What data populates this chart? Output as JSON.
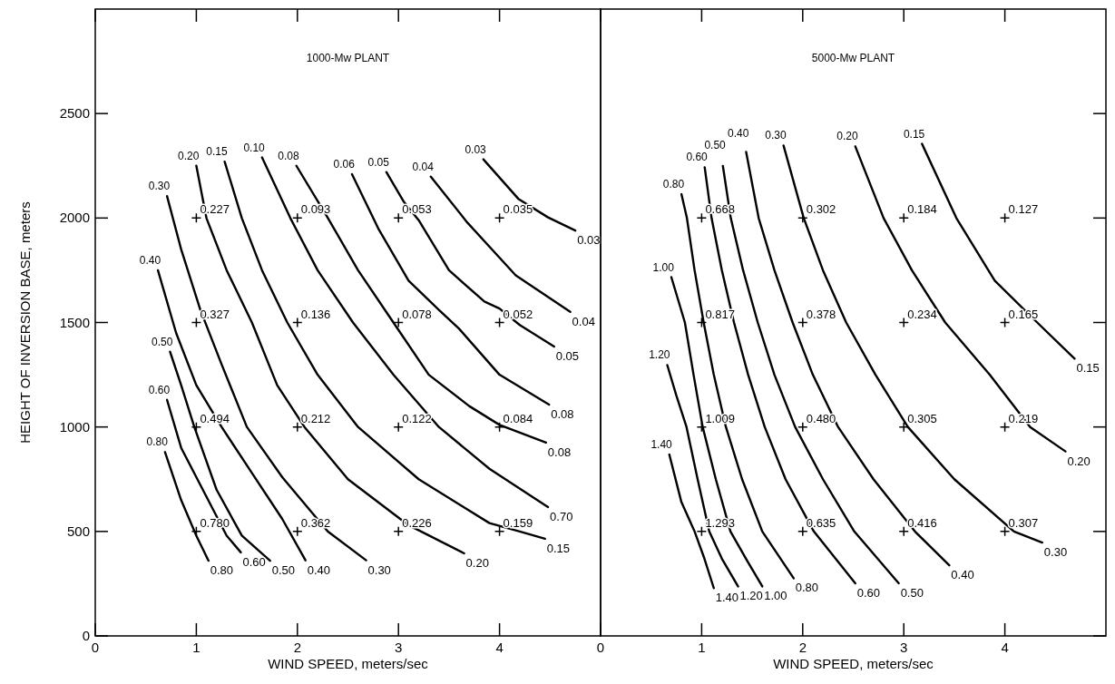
{
  "chart_data": [
    {
      "type": "line",
      "title": "1000-Mw PLANT",
      "xlabel": "WIND SPEED, meters/sec",
      "ylabel": "HEIGHT OF INVERSION BASE, meters",
      "xlim": [
        0,
        5
      ],
      "xticks": [
        0,
        1,
        2,
        3,
        4
      ],
      "ylim": [
        0,
        3000
      ],
      "yticks": [
        0,
        500,
        1000,
        1500,
        2000,
        2500
      ],
      "series": [
        {
          "name": "0.80",
          "color": "#000000",
          "x": [
            0.69,
            0.85,
            1.0,
            1.12
          ],
          "values": [
            880,
            650,
            480,
            360
          ]
        },
        {
          "name": "0.60",
          "color": "#000000",
          "x": [
            0.71,
            0.85,
            1.0,
            1.3,
            1.44
          ],
          "values": [
            1130,
            900,
            760,
            480,
            400
          ]
        },
        {
          "name": "0.50",
          "color": "#000000",
          "x": [
            0.74,
            0.85,
            0.98,
            1.2,
            1.45,
            1.73
          ],
          "values": [
            1360,
            1200,
            1000,
            700,
            480,
            360
          ]
        },
        {
          "name": "0.40",
          "color": "#000000",
          "x": [
            0.62,
            0.8,
            1.0,
            1.25,
            1.55,
            1.85,
            2.08
          ],
          "values": [
            1750,
            1450,
            1200,
            1000,
            780,
            560,
            362
          ]
        },
        {
          "name": "0.30",
          "color": "#000000",
          "x": [
            0.71,
            0.85,
            1.04,
            1.25,
            1.5,
            1.85,
            2.3,
            2.68
          ],
          "values": [
            2105,
            1850,
            1560,
            1300,
            1000,
            760,
            500,
            362
          ]
        },
        {
          "name": "0.20",
          "color": "#000000",
          "x": [
            1.0,
            1.1,
            1.3,
            1.55,
            1.8,
            2.07,
            2.5,
            3.1,
            3.65
          ],
          "values": [
            2250,
            2000,
            1750,
            1500,
            1200,
            1000,
            750,
            530,
            395
          ]
        },
        {
          "name": "0.15",
          "color": "#000000",
          "x": [
            1.28,
            1.45,
            1.65,
            1.9,
            2.2,
            2.6,
            3.2,
            3.9,
            4.2,
            4.45
          ],
          "values": [
            2270,
            2000,
            1750,
            1500,
            1250,
            1000,
            750,
            540,
            500,
            465
          ]
        },
        {
          "name": "0.10",
          "color": "#000000",
          "x": [
            1.65,
            1.93,
            2.2,
            2.55,
            2.95,
            3.4,
            3.9,
            4.48
          ],
          "values": [
            2290,
            2000,
            1750,
            1500,
            1250,
            1000,
            800,
            617
          ]
        },
        {
          "name": "0.08",
          "color": "#000000",
          "x": [
            1.99,
            2.29,
            2.6,
            2.95,
            3.3,
            3.7,
            4.0,
            4.46
          ],
          "values": [
            2250,
            2010,
            1750,
            1500,
            1250,
            1100,
            1010,
            925
          ]
        },
        {
          "name": "0.06",
          "color": "#000000",
          "x": [
            2.54,
            2.8,
            3.1,
            3.4,
            3.6,
            4.0,
            4.49
          ],
          "values": [
            2210,
            1950,
            1700,
            1560,
            1470,
            1250,
            1107
          ]
        },
        {
          "name": "0.05",
          "color": "#000000",
          "x": [
            2.88,
            3.05,
            3.2,
            3.5,
            3.85,
            4.0,
            4.2,
            4.54
          ],
          "values": [
            2220,
            2080,
            1990,
            1750,
            1600,
            1567,
            1488,
            1385
          ]
        },
        {
          "name": "0.04",
          "color": "#000000",
          "x": [
            3.32,
            3.68,
            4.16,
            4.7
          ],
          "values": [
            2198,
            1979,
            1726,
            1551
          ]
        },
        {
          "name": "0.03",
          "color": "#000000",
          "x": [
            3.84,
            4.19,
            4.48,
            4.75
          ],
          "values": [
            2281,
            2090,
            2003,
            1940
          ]
        },
        {
          "type": "scatter",
          "marker": "cross",
          "color": "#000000",
          "x": [
            1,
            2,
            3,
            4,
            1,
            2,
            3,
            4,
            1,
            2,
            3,
            4,
            1,
            2,
            3,
            4
          ],
          "values": [
            2000,
            2000,
            2000,
            2000,
            1500,
            1500,
            1500,
            1500,
            1000,
            1000,
            1000,
            1000,
            500,
            500,
            500,
            500
          ]
        }
      ],
      "annotations": [
        {
          "text": "0.227",
          "x": 1,
          "y": 2000
        },
        {
          "text": "0.093",
          "x": 2,
          "y": 2000
        },
        {
          "text": "0.053",
          "x": 3,
          "y": 2000
        },
        {
          "text": "0.035",
          "x": 4,
          "y": 2000
        },
        {
          "text": "0.327",
          "x": 1,
          "y": 1500
        },
        {
          "text": "0.136",
          "x": 2,
          "y": 1500
        },
        {
          "text": "0.078",
          "x": 3,
          "y": 1500
        },
        {
          "text": "0.052",
          "x": 4,
          "y": 1500
        },
        {
          "text": "0.494",
          "x": 1,
          "y": 1000
        },
        {
          "text": "0.212",
          "x": 2,
          "y": 1000
        },
        {
          "text": "0.122",
          "x": 3,
          "y": 1000
        },
        {
          "text": "0.084",
          "x": 4,
          "y": 1000
        },
        {
          "text": "0.780",
          "x": 1,
          "y": 500
        },
        {
          "text": "0.362",
          "x": 2,
          "y": 500
        },
        {
          "text": "0.226",
          "x": 3,
          "y": 500
        },
        {
          "text": "0.159",
          "x": 4,
          "y": 500
        },
        "0.80",
        "0.60",
        "0.50",
        "0.40",
        "0.30",
        "0.20",
        "0.15",
        "0.70",
        "0.08",
        "0.08",
        "0.05",
        "0.04",
        "0.03"
      ]
    },
    {
      "type": "line",
      "title": "5000-Mw PLANT",
      "xlabel": "WIND SPEED, meters/sec",
      "xlim": [
        0,
        5
      ],
      "xticks": [
        0,
        1,
        2,
        3,
        4
      ],
      "ylim": [
        0,
        3000
      ],
      "yticks": [
        0,
        500,
        1000,
        1500,
        2000,
        2500
      ],
      "tick_labels": "x",
      "series": [
        {
          "name": "1.40",
          "color": "#000000",
          "x": [
            0.68,
            0.8,
            0.93,
            1.02,
            1.12
          ],
          "values": [
            868,
            640,
            500,
            380,
            229
          ]
        },
        {
          "name": "1.20",
          "color": "#000000",
          "x": [
            0.66,
            0.75,
            0.85,
            0.96,
            1.075,
            1.2,
            1.36
          ],
          "values": [
            1296,
            1150,
            1000,
            750,
            500,
            370,
            237
          ]
        },
        {
          "name": "1.00",
          "color": "#000000",
          "x": [
            0.7,
            0.834,
            0.92,
            1.01,
            1.14,
            1.285,
            1.45,
            1.6
          ],
          "values": [
            1717,
            1500,
            1250,
            1000,
            750,
            500,
            360,
            237
          ]
        },
        {
          "name": "0.80",
          "color": "#000000",
          "x": [
            0.8,
            0.854,
            0.93,
            1.02,
            1.12,
            1.24,
            1.4,
            1.6,
            1.91
          ],
          "values": [
            2114,
            2000,
            1750,
            1500,
            1250,
            1000,
            750,
            500,
            276
          ]
        },
        {
          "name": "0.60",
          "color": "#000000",
          "x": [
            1.03,
            1.098,
            1.2,
            1.32,
            1.46,
            1.624,
            1.83,
            2.11,
            2.52
          ],
          "values": [
            2243,
            2000,
            1750,
            1500,
            1250,
            1000,
            750,
            500,
            252
          ]
        },
        {
          "name": "0.50",
          "color": "#000000",
          "x": [
            1.21,
            1.288,
            1.41,
            1.555,
            1.72,
            1.925,
            2.2,
            2.51,
            2.95
          ],
          "values": [
            2249,
            2000,
            1750,
            1500,
            1250,
            1000,
            750,
            500,
            252
          ]
        },
        {
          "name": "0.40",
          "color": "#000000",
          "x": [
            1.44,
            1.564,
            1.72,
            1.9,
            2.1,
            2.35,
            2.7,
            3.11,
            3.45
          ],
          "values": [
            2316,
            2000,
            1750,
            1500,
            1250,
            1000,
            750,
            500,
            338
          ]
        },
        {
          "name": "0.30",
          "color": "#000000",
          "x": [
            1.81,
            2.01,
            2.2,
            2.43,
            2.72,
            3.04,
            3.5,
            4.09,
            4.37
          ],
          "values": [
            2347,
            2000,
            1750,
            1500,
            1250,
            1000,
            750,
            500,
            447
          ]
        },
        {
          "name": "0.20",
          "color": "#000000",
          "x": [
            2.52,
            2.8,
            3.08,
            3.41,
            3.85,
            4.25,
            4.6
          ],
          "values": [
            2343,
            2000,
            1750,
            1500,
            1250,
            1000,
            883
          ]
        },
        {
          "name": "0.15",
          "color": "#000000",
          "x": [
            3.18,
            3.52,
            3.9,
            4.32,
            4.69
          ],
          "values": [
            2355,
            2000,
            1700,
            1500,
            1327
          ]
        },
        {
          "type": "scatter",
          "marker": "cross",
          "color": "#000000",
          "x": [
            1,
            2,
            3,
            4,
            1,
            2,
            3,
            4,
            1,
            2,
            3,
            4,
            1,
            2,
            3,
            4
          ],
          "values": [
            2000,
            2000,
            2000,
            2000,
            1500,
            1500,
            1500,
            1500,
            1000,
            1000,
            1000,
            1000,
            500,
            500,
            500,
            500
          ]
        }
      ],
      "annotations": [
        {
          "text": "0.668",
          "x": 1,
          "y": 2000
        },
        {
          "text": "0.302",
          "x": 2,
          "y": 2000
        },
        {
          "text": "0.184",
          "x": 3,
          "y": 2000
        },
        {
          "text": "0.127",
          "x": 4,
          "y": 2000
        },
        {
          "text": "0.817",
          "x": 1,
          "y": 1500
        },
        {
          "text": "0.378",
          "x": 2,
          "y": 1500
        },
        {
          "text": "0.234",
          "x": 3,
          "y": 1500
        },
        {
          "text": "0.165",
          "x": 4,
          "y": 1500
        },
        {
          "text": "1.009",
          "x": 1,
          "y": 1000
        },
        {
          "text": "0.480",
          "x": 2,
          "y": 1000
        },
        {
          "text": "0.305",
          "x": 3,
          "y": 1000
        },
        {
          "text": "0.219",
          "x": 4,
          "y": 1000
        },
        {
          "text": "1.293",
          "x": 1,
          "y": 500
        },
        {
          "text": "0.635",
          "x": 2,
          "y": 500
        },
        {
          "text": "0.416",
          "x": 3,
          "y": 500
        },
        {
          "text": "0.307",
          "x": 4,
          "y": 500
        },
        "1.40",
        "1.20",
        "1.00",
        "0.80",
        "0.60",
        "0.50",
        "0.40",
        "0.30",
        "0.20",
        "0.15"
      ]
    }
  ]
}
